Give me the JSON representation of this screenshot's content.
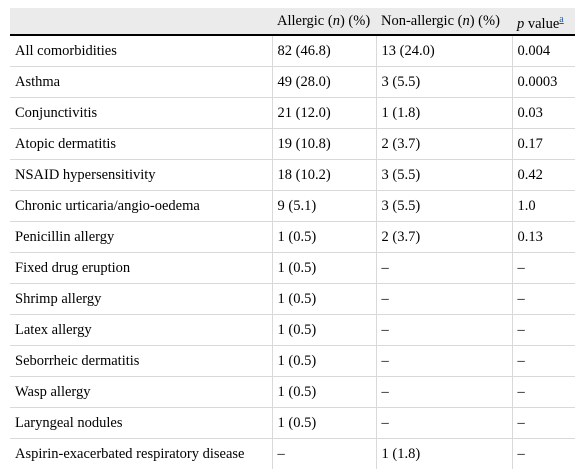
{
  "header": {
    "col1": "",
    "col2_prefix": "Allergic (",
    "col2_italic": "n",
    "col2_suffix": ") (%)",
    "col3_prefix": "Non-allergic (",
    "col3_italic": "n",
    "col3_suffix": ") (%)",
    "col4_italic": "p",
    "col4_suffix": " value",
    "col4_footnote": "a"
  },
  "rows": [
    {
      "condition": "All comorbidities",
      "allergic": "82 (46.8)",
      "nonallergic": "13 (24.0)",
      "p": "0.004"
    },
    {
      "condition": "Asthma",
      "allergic": "49 (28.0)",
      "nonallergic": "3 (5.5)",
      "p": "0.0003"
    },
    {
      "condition": "Conjunctivitis",
      "allergic": "21 (12.0)",
      "nonallergic": "1 (1.8)",
      "p": "0.03"
    },
    {
      "condition": "Atopic dermatitis",
      "allergic": "19 (10.8)",
      "nonallergic": "2 (3.7)",
      "p": "0.17"
    },
    {
      "condition": "NSAID hypersensitivity",
      "allergic": "18 (10.2)",
      "nonallergic": "3 (5.5)",
      "p": "0.42"
    },
    {
      "condition": "Chronic urticaria/angio-oedema",
      "allergic": "9 (5.1)",
      "nonallergic": "3 (5.5)",
      "p": "1.0"
    },
    {
      "condition": "Penicillin allergy",
      "allergic": "1 (0.5)",
      "nonallergic": "2 (3.7)",
      "p": "0.13"
    },
    {
      "condition": "Fixed drug eruption",
      "allergic": "1 (0.5)",
      "nonallergic": "–",
      "p": "–"
    },
    {
      "condition": "Shrimp allergy",
      "allergic": "1 (0.5)",
      "nonallergic": "–",
      "p": "–"
    },
    {
      "condition": "Latex allergy",
      "allergic": "1 (0.5)",
      "nonallergic": "–",
      "p": "–"
    },
    {
      "condition": "Seborrheic dermatitis",
      "allergic": "1 (0.5)",
      "nonallergic": "–",
      "p": "–"
    },
    {
      "condition": "Wasp allergy",
      "allergic": "1 (0.5)",
      "nonallergic": "–",
      "p": "–"
    },
    {
      "condition": "Laryngeal nodules",
      "allergic": "1 (0.5)",
      "nonallergic": "–",
      "p": "–"
    },
    {
      "condition": "Aspirin-exacerbated respiratory disease",
      "allergic": "–",
      "nonallergic": "1 (1.8)",
      "p": "–"
    }
  ]
}
